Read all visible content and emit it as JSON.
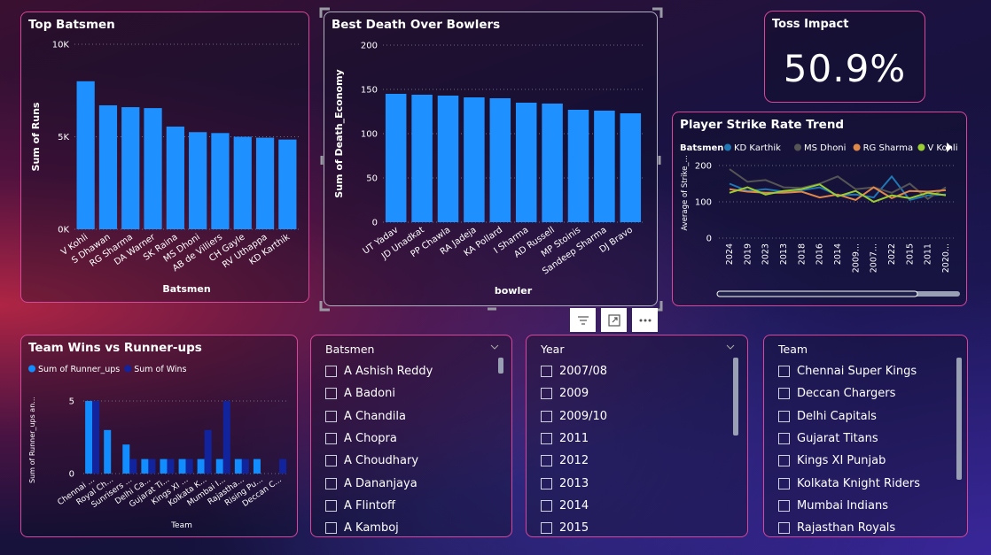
{
  "top_batsmen": {
    "title": "Top Batsmen",
    "chart_data": {
      "type": "bar",
      "title": "Top Batsmen",
      "xlabel": "Batsmen",
      "ylabel": "Sum of Runs",
      "ylim": [
        0,
        10000
      ],
      "yticks": [
        "0K",
        "5K",
        "10K"
      ],
      "categories": [
        "V Kohli",
        "S Dhawan",
        "RG Sharma",
        "DA Warner",
        "SK Raina",
        "MS Dhoni",
        "AB de Villiers",
        "CH Gayle",
        "RV Uthappa",
        "KD Karthik"
      ],
      "values": [
        8000,
        6700,
        6600,
        6550,
        5550,
        5250,
        5200,
        5000,
        4950,
        4850
      ]
    }
  },
  "death_bowlers": {
    "title": "Best Death Over Bowlers",
    "chart_data": {
      "type": "bar",
      "title": "Best Death Over Bowlers",
      "xlabel": "bowler",
      "ylabel": "Sum of Death_Economy",
      "ylim": [
        0,
        200
      ],
      "yticks": [
        "0",
        "50",
        "100",
        "150",
        "200"
      ],
      "categories": [
        "UT Yadav",
        "JD Unadkat",
        "PP Chawla",
        "RA Jadeja",
        "KA Pollard",
        "I Sharma",
        "AD Russell",
        "MP Stoinis",
        "Sandeep Sharma",
        "DJ Bravo"
      ],
      "values": [
        145,
        144,
        143,
        141,
        140,
        135,
        134,
        127,
        126,
        123
      ]
    }
  },
  "toss": {
    "title": "Toss Impact",
    "value": "50.9%"
  },
  "strike_rate": {
    "title": "Player Strike Rate Trend",
    "legend_label": "Batsmen",
    "chart_data": {
      "type": "line",
      "title": "Player Strike Rate Trend",
      "ylabel": "Average of Strike_...",
      "ylim": [
        0,
        200
      ],
      "yticks": [
        "0",
        "100",
        "200"
      ],
      "x": [
        "2024",
        "2019",
        "2023",
        "2013",
        "2018",
        "2016",
        "2014",
        "2009...",
        "2007...",
        "2022",
        "2015",
        "2011",
        "2020..."
      ],
      "series": [
        {
          "name": "KD Karthik",
          "color": "#1f77b4",
          "values": [
            150,
            130,
            135,
            128,
            132,
            140,
            118,
            120,
            112,
            170,
            105,
            118,
            120
          ]
        },
        {
          "name": "MS Dhoni",
          "color": "#555555",
          "values": [
            190,
            155,
            160,
            140,
            138,
            150,
            170,
            135,
            140,
            125,
            150,
            108,
            140
          ]
        },
        {
          "name": "RG Sharma",
          "color": "#e0874a",
          "values": [
            135,
            128,
            125,
            125,
            128,
            112,
            120,
            105,
            140,
            110,
            130,
            128,
            132
          ]
        },
        {
          "name": "V Kohli",
          "color": "#9acd32",
          "values": [
            125,
            140,
            120,
            130,
            135,
            148,
            115,
            130,
            100,
            118,
            110,
            125,
            118
          ]
        }
      ]
    }
  },
  "team_wins": {
    "title": "Team Wins vs Runner-ups",
    "chart_data": {
      "type": "bar",
      "title": "Team Wins vs Runner-ups",
      "xlabel": "Team",
      "ylabel": "Sum of Runner_ups an...",
      "ylim": [
        0,
        5
      ],
      "yticks": [
        "0",
        "5"
      ],
      "categories": [
        "Chennai ...",
        "Royal Ch...",
        "Sunrisers ...",
        "Delhi Ca...",
        "Gujarat Ti...",
        "Kings XI ...",
        "Kolkata K...",
        "Mumbai I...",
        "Rajastha...",
        "Rising Pu...",
        "Deccan C..."
      ],
      "series": [
        {
          "name": "Sum of Runner_ups",
          "color": "#118dff",
          "values": [
            5,
            3,
            2,
            1,
            1,
            1,
            1,
            1,
            1,
            1,
            0
          ]
        },
        {
          "name": "Sum of Wins",
          "color": "#12239e",
          "values": [
            5,
            0,
            1,
            1,
            1,
            1,
            3,
            5,
            1,
            0,
            1
          ]
        }
      ]
    }
  },
  "slicer_batsmen": {
    "header": "Batsmen",
    "items": [
      "A Ashish Reddy",
      "A Badoni",
      "A Chandila",
      "A Chopra",
      "A Choudhary",
      "A Dananjaya",
      "A Flintoff",
      "A Kamboj"
    ]
  },
  "slicer_year": {
    "header": "Year",
    "items": [
      "2007/08",
      "2009",
      "2009/10",
      "2011",
      "2012",
      "2013",
      "2014",
      "2015"
    ]
  },
  "slicer_team": {
    "header": "Team",
    "items": [
      "Chennai Super Kings",
      "Deccan Chargers",
      "Delhi Capitals",
      "Gujarat Titans",
      "Kings XI Punjab",
      "Kolkata Knight Riders",
      "Mumbai Indians",
      "Rajasthan Royals"
    ]
  },
  "colors": {
    "bar": "#1e90ff",
    "border": "#d9479a"
  }
}
